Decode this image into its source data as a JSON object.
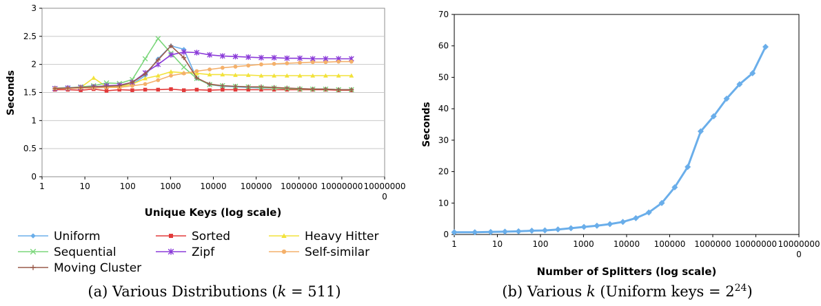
{
  "colors": {
    "uniform": "#6aaeea",
    "sorted": "#e23a3a",
    "heavy": "#f2e23a",
    "sequential": "#7ad67a",
    "zipf": "#8a3ad8",
    "selfsimilar": "#f4b06a",
    "moving": "#9a5a4a"
  },
  "chart_data": [
    {
      "type": "line",
      "caption": "(a) Various Distributions (k = 511)",
      "caption_prefix": "(a) Various Distributions (",
      "caption_var": "k",
      "caption_eq": " = 511)",
      "xlabel": "Unique Keys (log scale)",
      "ylabel": "Seconds",
      "x_scale": "log",
      "xlim": [
        1,
        100000000
      ],
      "ylim": [
        0,
        3
      ],
      "x_ticks": [
        "1",
        "10",
        "100",
        "1000",
        "10000",
        "100000",
        "1000000",
        "10000000",
        "10000000"
      ],
      "x_tick_extra": "0",
      "y_ticks": [
        "0",
        "0.5",
        "1",
        "1.5",
        "2",
        "2.5",
        "3"
      ],
      "grid": "horizontal",
      "legend_position": "bottom",
      "x": [
        2,
        4,
        8,
        16,
        32,
        64,
        128,
        256,
        512,
        1024,
        2048,
        4096,
        8192,
        16384,
        32768,
        65536,
        131072,
        262144,
        524288,
        1048576,
        2097152,
        4194304,
        8388608,
        16777216
      ],
      "series": [
        {
          "name": "Uniform",
          "key": "uniform",
          "marker": "diamond",
          "values": [
            1.58,
            1.59,
            1.59,
            1.59,
            1.6,
            1.62,
            1.65,
            1.8,
            2.1,
            2.33,
            2.27,
            1.75,
            1.64,
            1.61,
            1.6,
            1.59,
            1.58,
            1.58,
            1.57,
            1.56,
            1.56,
            1.56,
            1.55,
            1.55
          ]
        },
        {
          "name": "Sorted",
          "key": "sorted",
          "marker": "square",
          "values": [
            1.55,
            1.55,
            1.54,
            1.56,
            1.53,
            1.55,
            1.54,
            1.55,
            1.55,
            1.56,
            1.54,
            1.55,
            1.54,
            1.55,
            1.55,
            1.55,
            1.55,
            1.55,
            1.55,
            1.55,
            1.55,
            1.55,
            1.54,
            1.54
          ]
        },
        {
          "name": "Heavy Hitter",
          "key": "heavy",
          "marker": "triangle",
          "values": [
            1.58,
            1.58,
            1.59,
            1.76,
            1.6,
            1.6,
            1.65,
            1.75,
            1.8,
            1.87,
            1.85,
            1.84,
            1.82,
            1.82,
            1.81,
            1.81,
            1.8,
            1.8,
            1.8,
            1.8,
            1.8,
            1.8,
            1.8,
            1.8
          ]
        },
        {
          "name": "Sequential",
          "key": "sequential",
          "marker": "x",
          "values": [
            1.57,
            1.58,
            1.6,
            1.62,
            1.67,
            1.66,
            1.73,
            2.1,
            2.46,
            2.2,
            1.95,
            1.75,
            1.64,
            1.62,
            1.61,
            1.6,
            1.59,
            1.58,
            1.57,
            1.56,
            1.56,
            1.56,
            1.55,
            1.55
          ]
        },
        {
          "name": "Zipf",
          "key": "zipf",
          "marker": "star",
          "values": [
            1.57,
            1.58,
            1.59,
            1.6,
            1.62,
            1.63,
            1.68,
            1.85,
            2.0,
            2.17,
            2.22,
            2.21,
            2.17,
            2.15,
            2.14,
            2.13,
            2.12,
            2.12,
            2.11,
            2.11,
            2.1,
            2.1,
            2.1,
            2.1
          ]
        },
        {
          "name": "Self-similar",
          "key": "selfsimilar",
          "marker": "circle",
          "values": [
            1.57,
            1.57,
            1.58,
            1.58,
            1.59,
            1.59,
            1.62,
            1.65,
            1.72,
            1.8,
            1.84,
            1.88,
            1.91,
            1.94,
            1.96,
            1.98,
            2.0,
            2.01,
            2.02,
            2.03,
            2.04,
            2.04,
            2.05,
            2.05
          ]
        },
        {
          "name": "Moving Cluster",
          "key": "moving",
          "marker": "plus",
          "values": [
            1.57,
            1.58,
            1.59,
            1.6,
            1.61,
            1.62,
            1.68,
            1.83,
            2.08,
            2.33,
            2.12,
            1.76,
            1.65,
            1.62,
            1.61,
            1.6,
            1.6,
            1.59,
            1.58,
            1.57,
            1.56,
            1.56,
            1.55,
            1.55
          ]
        }
      ]
    },
    {
      "type": "line",
      "caption_prefix": "(b) Various ",
      "caption_var": "k",
      "caption_mid": " (Uniform keys = 2",
      "caption_sup": "24",
      "caption_end": ")",
      "xlabel": "Number of Splitters (log scale)",
      "ylabel": "Seconds",
      "x_scale": "log",
      "xlim": [
        1,
        100000000
      ],
      "ylim": [
        0,
        70
      ],
      "x_ticks": [
        "1",
        "10",
        "100",
        "1000",
        "10000",
        "100000",
        "1000000",
        "10000000",
        "10000000"
      ],
      "x_tick_extra": "0",
      "y_ticks": [
        "0",
        "10",
        "20",
        "30",
        "40",
        "50",
        "60",
        "70"
      ],
      "grid": "none",
      "x": [
        1,
        3,
        7,
        15,
        31,
        63,
        127,
        255,
        511,
        1023,
        2047,
        4095,
        8191,
        16383,
        32767,
        65535,
        131071,
        262143,
        524287,
        1048575,
        2097151,
        4194303,
        8388607,
        16777215
      ],
      "series": [
        {
          "name": "",
          "key": "uniform",
          "marker": "diamond",
          "values": [
            0.7,
            0.7,
            0.8,
            0.9,
            1.0,
            1.2,
            1.3,
            1.6,
            2.0,
            2.4,
            2.8,
            3.3,
            4.0,
            5.2,
            7.0,
            10.0,
            15.0,
            21.5,
            32.8,
            37.6,
            43.2,
            47.8,
            51.3,
            59.7
          ]
        }
      ]
    }
  ]
}
